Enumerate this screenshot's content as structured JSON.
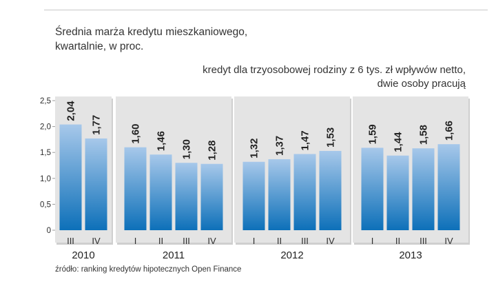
{
  "title_lines": [
    "Średnia marża kredytu mieszkaniowego,",
    "kwartalnie, w proc."
  ],
  "subtitle_lines": [
    "kredyt dla trzyosobowej rodziny z 6 tys. zł wpływów netto,",
    "dwie osoby pracują"
  ],
  "source": "źródło: ranking kredytów hipotecznych Open Finance",
  "colors": {
    "bar_top": "#a7c8ea",
    "bar_bottom": "#0d70b9",
    "panel": "#e4e4e4",
    "text": "#2b2b2b"
  },
  "chart_data": {
    "type": "bar",
    "title": "Średnia marża kredytu mieszkaniowego, kwartalnie, w proc.",
    "subtitle": "kredyt dla trzyosobowej rodziny z 6 tys. zł wpływów netto, dwie osoby pracują",
    "ylim": [
      0,
      2.5
    ],
    "yticks": [
      "0",
      "0,5",
      "1,0",
      "1,5",
      "2,0",
      "2,5"
    ],
    "grid": false,
    "groups": [
      {
        "year": "2010",
        "bars": [
          {
            "quarter": "III",
            "value": 2.04,
            "label": "2,04"
          },
          {
            "quarter": "IV",
            "value": 1.77,
            "label": "1,77"
          }
        ]
      },
      {
        "year": "2011",
        "bars": [
          {
            "quarter": "I",
            "value": 1.6,
            "label": "1,60"
          },
          {
            "quarter": "II",
            "value": 1.46,
            "label": "1,46"
          },
          {
            "quarter": "III",
            "value": 1.3,
            "label": "1,30"
          },
          {
            "quarter": "IV",
            "value": 1.28,
            "label": "1,28"
          }
        ]
      },
      {
        "year": "2012",
        "bars": [
          {
            "quarter": "I",
            "value": 1.32,
            "label": "1,32"
          },
          {
            "quarter": "II",
            "value": 1.37,
            "label": "1,37"
          },
          {
            "quarter": "III",
            "value": 1.47,
            "label": "1,47"
          },
          {
            "quarter": "IV",
            "value": 1.53,
            "label": "1,53"
          }
        ]
      },
      {
        "year": "2013",
        "bars": [
          {
            "quarter": "I",
            "value": 1.59,
            "label": "1,59"
          },
          {
            "quarter": "II",
            "value": 1.44,
            "label": "1,44"
          },
          {
            "quarter": "III",
            "value": 1.58,
            "label": "1,58"
          },
          {
            "quarter": "IV",
            "value": 1.66,
            "label": "1,66"
          }
        ]
      }
    ]
  }
}
